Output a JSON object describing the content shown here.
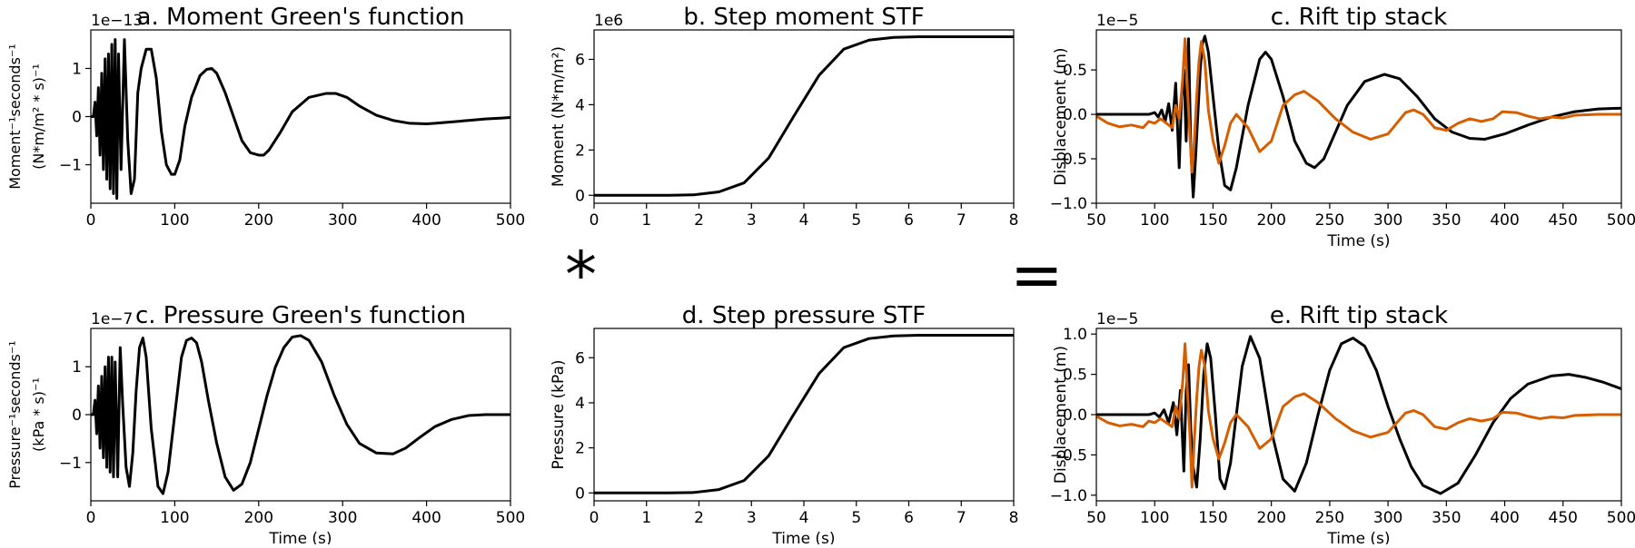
{
  "operators": {
    "convolve": "*",
    "equals": "="
  },
  "colors": {
    "modeled": "#000000",
    "observed": "#d55e00"
  },
  "chart_data": [
    {
      "id": "a",
      "type": "line",
      "title": "a. Moment Green's function",
      "xlabel": "",
      "ylabel_lines": [
        "Moment$^{-1}$seconds$^{-1}$",
        "$(\\frac{N*m}{m^2}*s)^{-1}$"
      ],
      "ylabel_line1": "Moment⁻¹seconds⁻¹",
      "ylabel_line2": "(N*m/m² * s)⁻¹",
      "offset_text": "1e−13",
      "xlim": [
        0,
        500
      ],
      "ylim": [
        -1.8,
        1.8
      ],
      "xticks": [
        0,
        100,
        200,
        300,
        400,
        500
      ],
      "xtick_labels": [
        "0",
        "100",
        "200",
        "300",
        "400",
        "500"
      ],
      "yticks": [
        -1,
        0,
        1
      ],
      "ytick_labels": [
        "−1",
        "0",
        "1"
      ],
      "series": [
        {
          "x": [
            0,
            3,
            5,
            7,
            9,
            11,
            13,
            15,
            17,
            19,
            21,
            23,
            25,
            27,
            29,
            31,
            33,
            36,
            40,
            44,
            48,
            52,
            56,
            60,
            66,
            72,
            78,
            84,
            90,
            96,
            100,
            106,
            112,
            120,
            130,
            138,
            144,
            150,
            160,
            170,
            180,
            190,
            200,
            206,
            212,
            225,
            240,
            260,
            280,
            292,
            305,
            320,
            340,
            360,
            380,
            400,
            410,
            430,
            450,
            470,
            490,
            500
          ],
          "values": [
            0,
            0,
            0.3,
            -0.4,
            0.6,
            -0.8,
            0.9,
            -1.1,
            1.2,
            -1.3,
            1.3,
            -1.5,
            1.5,
            -1.6,
            1.6,
            -1.7,
            1.3,
            -1.1,
            1.6,
            -0.5,
            -1.6,
            -1.3,
            0.5,
            1.0,
            1.4,
            1.4,
            0.8,
            -0.3,
            -1.0,
            -1.2,
            -1.2,
            -0.9,
            -0.2,
            0.4,
            0.85,
            0.98,
            1.0,
            0.9,
            0.5,
            0.0,
            -0.5,
            -0.75,
            -0.8,
            -0.8,
            -0.7,
            -0.35,
            0.1,
            0.4,
            0.48,
            0.48,
            0.4,
            0.22,
            0.03,
            -0.08,
            -0.14,
            -0.15,
            -0.14,
            -0.11,
            -0.08,
            -0.05,
            -0.03,
            -0.02
          ]
        }
      ]
    },
    {
      "id": "b",
      "type": "line",
      "title": "b. Step moment STF",
      "xlabel": "",
      "ylabel": "Moment (N*m/m²)",
      "offset_text": "1e6",
      "xlim": [
        0,
        8
      ],
      "ylim": [
        -0.35,
        7.3
      ],
      "xticks": [
        0,
        1,
        2,
        3,
        4,
        5,
        6,
        7,
        8
      ],
      "xtick_labels": [
        "0",
        "1",
        "2",
        "3",
        "4",
        "5",
        "6",
        "7",
        "8"
      ],
      "yticks": [
        0,
        2,
        4,
        6
      ],
      "ytick_labels": [
        "0",
        "2",
        "4",
        "6"
      ],
      "series": [
        {
          "x": [
            0,
            1.43,
            1.9,
            2.38,
            2.86,
            3.33,
            3.81,
            4.29,
            4.76,
            5.24,
            5.71,
            6.19,
            8
          ],
          "values": [
            0,
            0,
            0.02,
            0.15,
            0.55,
            1.65,
            3.5,
            5.3,
            6.45,
            6.85,
            6.97,
            7.0,
            7.0
          ]
        }
      ]
    },
    {
      "id": "c",
      "type": "line",
      "title": "c. Rift tip stack",
      "xlabel": "Time (s)",
      "ylabel": "Displacement (m)",
      "offset_text": "1e−5",
      "xlim": [
        50,
        500
      ],
      "ylim": [
        -1.0,
        0.95
      ],
      "xticks": [
        50,
        100,
        150,
        200,
        250,
        300,
        350,
        400,
        450,
        500
      ],
      "xtick_labels": [
        "50",
        "100",
        "150",
        "200",
        "250",
        "300",
        "350",
        "400",
        "450",
        "500"
      ],
      "yticks": [
        -1.0,
        -0.5,
        0.0,
        0.5
      ],
      "ytick_labels": [
        "−1.0",
        "−0.5",
        "0.0",
        "0.5"
      ],
      "series": [
        {
          "color_key": "modeled",
          "x": [
            50,
            80,
            95,
            100,
            103,
            106,
            109,
            112,
            115,
            118,
            121,
            123,
            125,
            127,
            129,
            131,
            133,
            135,
            137,
            139,
            141,
            143,
            146,
            150,
            155,
            160,
            165,
            170,
            180,
            190,
            195,
            200,
            210,
            220,
            230,
            237,
            245,
            255,
            265,
            280,
            297,
            310,
            325,
            340,
            355,
            370,
            383,
            400,
            420,
            440,
            460,
            480,
            500
          ],
          "values": [
            0,
            0,
            0,
            0.02,
            -0.03,
            0.05,
            -0.08,
            0.12,
            -0.18,
            0.35,
            -0.6,
            0.2,
            0.5,
            -0.3,
            0.85,
            -0.4,
            -0.93,
            -0.5,
            0.0,
            0.5,
            0.8,
            0.88,
            0.7,
            0.2,
            -0.4,
            -0.8,
            -0.85,
            -0.6,
            0.1,
            0.62,
            0.7,
            0.62,
            0.2,
            -0.3,
            -0.55,
            -0.6,
            -0.5,
            -0.2,
            0.1,
            0.37,
            0.45,
            0.4,
            0.2,
            -0.05,
            -0.2,
            -0.27,
            -0.28,
            -0.22,
            -0.12,
            -0.03,
            0.03,
            0.06,
            0.07
          ]
        },
        {
          "color_key": "observed",
          "x": [
            50,
            60,
            70,
            80,
            90,
            95,
            100,
            105,
            110,
            115,
            118,
            121,
            124,
            126,
            128,
            130,
            132,
            134,
            136,
            138,
            140,
            143,
            146,
            150,
            155,
            160,
            165,
            170,
            180,
            190,
            200,
            210,
            220,
            228,
            240,
            255,
            270,
            285,
            300,
            315,
            322,
            330,
            340,
            350,
            360,
            370,
            380,
            390,
            398,
            410,
            420,
            430,
            440,
            450,
            460,
            480,
            500
          ],
          "values": [
            -0.02,
            -0.1,
            -0.14,
            -0.12,
            -0.15,
            -0.08,
            -0.1,
            -0.05,
            -0.1,
            -0.15,
            0.1,
            -0.05,
            0.4,
            0.85,
            0.3,
            -0.2,
            -0.65,
            -0.3,
            0.2,
            0.6,
            0.82,
            0.6,
            0.05,
            -0.3,
            -0.55,
            -0.35,
            -0.1,
            0.0,
            -0.15,
            -0.42,
            -0.3,
            0.1,
            0.22,
            0.26,
            0.15,
            -0.05,
            -0.2,
            -0.28,
            -0.22,
            0.02,
            0.05,
            0.0,
            -0.15,
            -0.18,
            -0.1,
            -0.05,
            -0.08,
            -0.05,
            0.03,
            0.02,
            -0.02,
            -0.05,
            -0.03,
            -0.04,
            -0.01,
            0.0,
            0.0
          ]
        }
      ]
    },
    {
      "id": "c2",
      "type": "line",
      "title": "c. Pressure Green's function",
      "xlabel": "Time (s)",
      "ylabel_line1": "Pressure⁻¹seconds⁻¹",
      "ylabel_line2": "(kPa * s)⁻¹",
      "offset_text": "1e−7",
      "xlim": [
        0,
        500
      ],
      "ylim": [
        -1.8,
        1.8
      ],
      "xticks": [
        0,
        100,
        200,
        300,
        400,
        500
      ],
      "xtick_labels": [
        "0",
        "100",
        "200",
        "300",
        "400",
        "500"
      ],
      "yticks": [
        -1,
        0,
        1
      ],
      "ytick_labels": [
        "−1",
        "0",
        "1"
      ],
      "series": [
        {
          "x": [
            0,
            3,
            5,
            7,
            9,
            11,
            13,
            15,
            17,
            19,
            21,
            23,
            25,
            27,
            29,
            32,
            35,
            38,
            42,
            46,
            50,
            54,
            58,
            62,
            66,
            72,
            80,
            86,
            92,
            100,
            108,
            114,
            120,
            126,
            132,
            140,
            150,
            160,
            170,
            180,
            190,
            200,
            210,
            220,
            230,
            240,
            250,
            260,
            275,
            290,
            305,
            320,
            340,
            360,
            375,
            390,
            410,
            430,
            450,
            470,
            490,
            500
          ],
          "values": [
            0,
            0,
            0.3,
            -0.4,
            0.6,
            -0.7,
            0.8,
            -0.9,
            1.0,
            -1.1,
            1.2,
            -1.2,
            1.2,
            -1.3,
            1.1,
            -1.3,
            1.4,
            0.2,
            -1.1,
            -1.5,
            -0.8,
            0.5,
            1.4,
            1.6,
            1.2,
            -0.3,
            -1.5,
            -1.65,
            -1.2,
            0.0,
            1.2,
            1.55,
            1.6,
            1.5,
            1.1,
            0.3,
            -0.6,
            -1.3,
            -1.58,
            -1.45,
            -1.0,
            -0.3,
            0.4,
            1.0,
            1.4,
            1.62,
            1.65,
            1.55,
            1.1,
            0.4,
            -0.2,
            -0.6,
            -0.8,
            -0.82,
            -0.7,
            -0.5,
            -0.25,
            -0.1,
            -0.02,
            0.0,
            0.0,
            0.0
          ]
        }
      ]
    },
    {
      "id": "d",
      "type": "line",
      "title": "d. Step pressure STF",
      "xlabel": "Time (s)",
      "ylabel": "Pressure (kPa)",
      "offset_text": "",
      "xlim": [
        0,
        8
      ],
      "ylim": [
        -0.35,
        7.3
      ],
      "xticks": [
        0,
        1,
        2,
        3,
        4,
        5,
        6,
        7,
        8
      ],
      "xtick_labels": [
        "0",
        "1",
        "2",
        "3",
        "4",
        "5",
        "6",
        "7",
        "8"
      ],
      "yticks": [
        0,
        2,
        4,
        6
      ],
      "ytick_labels": [
        "0",
        "2",
        "4",
        "6"
      ],
      "series": [
        {
          "x": [
            0,
            1.43,
            1.9,
            2.38,
            2.86,
            3.33,
            3.81,
            4.29,
            4.76,
            5.24,
            5.71,
            6.19,
            8
          ],
          "values": [
            0,
            0,
            0.02,
            0.15,
            0.55,
            1.65,
            3.5,
            5.3,
            6.45,
            6.85,
            6.97,
            7.0,
            7.0
          ]
        }
      ]
    },
    {
      "id": "e",
      "type": "line",
      "title": "e. Rift tip stack",
      "xlabel": "Time (s)",
      "ylabel": "Displacement (m)",
      "offset_text": "1e−5",
      "xlim": [
        50,
        500
      ],
      "ylim": [
        -1.07,
        1.07
      ],
      "xticks": [
        50,
        100,
        150,
        200,
        250,
        300,
        350,
        400,
        450,
        500
      ],
      "xtick_labels": [
        "50",
        "100",
        "150",
        "200",
        "250",
        "300",
        "350",
        "400",
        "450",
        "500"
      ],
      "yticks": [
        -1.0,
        -0.5,
        0.0,
        0.5,
        1.0
      ],
      "ytick_labels": [
        "−1.0",
        "−0.5",
        "0.0",
        "0.5",
        "1.0"
      ],
      "series": [
        {
          "color_key": "modeled",
          "x": [
            50,
            80,
            95,
            100,
            104,
            108,
            112,
            116,
            119,
            122,
            125,
            127,
            129,
            131,
            133,
            136,
            139,
            142,
            145,
            148,
            152,
            156,
            160,
            165,
            170,
            175,
            182,
            190,
            200,
            210,
            220,
            230,
            240,
            250,
            260,
            270,
            280,
            290,
            300,
            310,
            320,
            330,
            345,
            360,
            375,
            390,
            405,
            420,
            440,
            455,
            470,
            485,
            500
          ],
          "values": [
            0,
            0,
            0,
            0.02,
            -0.03,
            0.06,
            -0.1,
            0.15,
            -0.25,
            0.3,
            -0.7,
            0.3,
            0.62,
            -0.2,
            -0.65,
            -0.9,
            -0.3,
            0.5,
            0.88,
            0.7,
            0.0,
            -0.8,
            -0.92,
            -0.6,
            0.0,
            0.6,
            0.97,
            0.7,
            -0.2,
            -0.8,
            -0.95,
            -0.6,
            0.0,
            0.55,
            0.88,
            0.95,
            0.85,
            0.55,
            0.1,
            -0.3,
            -0.65,
            -0.88,
            -0.98,
            -0.85,
            -0.5,
            -0.1,
            0.2,
            0.38,
            0.48,
            0.5,
            0.46,
            0.4,
            0.32
          ]
        },
        {
          "color_key": "observed",
          "x": [
            50,
            60,
            70,
            80,
            90,
            95,
            100,
            105,
            110,
            115,
            118,
            121,
            124,
            126,
            128,
            130,
            132,
            134,
            136,
            138,
            140,
            143,
            146,
            150,
            155,
            160,
            165,
            170,
            180,
            190,
            200,
            210,
            220,
            228,
            240,
            255,
            270,
            285,
            300,
            315,
            322,
            330,
            340,
            350,
            360,
            370,
            380,
            390,
            398,
            410,
            420,
            430,
            440,
            450,
            460,
            480,
            500
          ],
          "values": [
            -0.02,
            -0.1,
            -0.14,
            -0.12,
            -0.15,
            -0.08,
            -0.1,
            -0.05,
            -0.1,
            -0.15,
            0.1,
            -0.05,
            0.4,
            0.88,
            0.3,
            -0.2,
            -0.9,
            -0.3,
            0.2,
            0.6,
            0.8,
            0.6,
            0.05,
            -0.3,
            -0.55,
            -0.35,
            -0.1,
            0.0,
            -0.15,
            -0.42,
            -0.3,
            0.1,
            0.22,
            0.26,
            0.15,
            -0.05,
            -0.2,
            -0.28,
            -0.22,
            0.02,
            0.05,
            0.0,
            -0.15,
            -0.18,
            -0.1,
            -0.05,
            -0.08,
            -0.05,
            0.03,
            0.02,
            -0.02,
            -0.05,
            -0.03,
            -0.04,
            -0.01,
            0.0,
            0.0
          ]
        }
      ]
    }
  ]
}
